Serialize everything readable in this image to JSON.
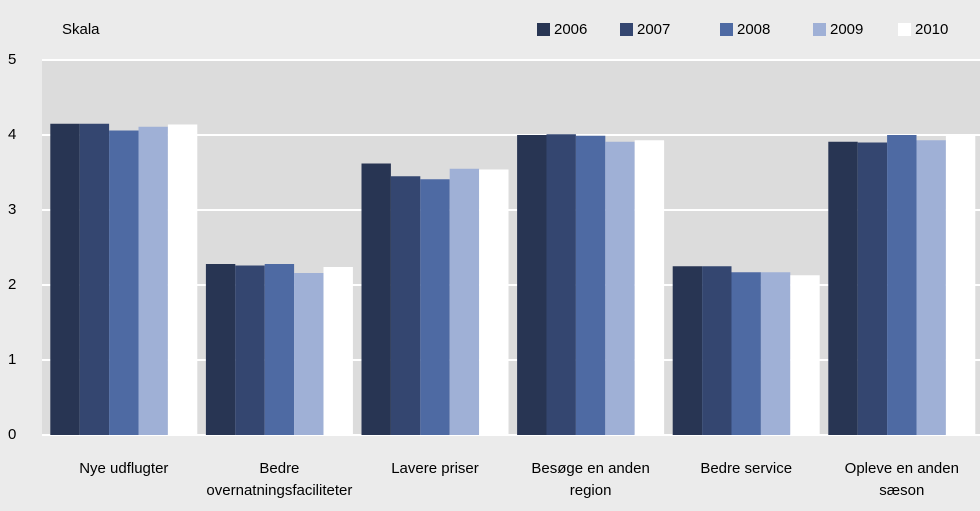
{
  "chart_data": {
    "type": "bar",
    "ylabel": "Skala",
    "categories": [
      "Nye udflugter",
      "Bedre overnatningsfaciliteter",
      "Lavere priser",
      "Besøge en anden region",
      "Bedre service",
      "Opleve en anden sæson"
    ],
    "series": [
      {
        "name": "2006",
        "color": "#283553",
        "values": [
          4.15,
          2.28,
          3.62,
          4.0,
          2.25,
          3.91
        ]
      },
      {
        "name": "2007",
        "color": "#344670",
        "values": [
          4.15,
          2.26,
          3.45,
          4.01,
          2.25,
          3.9
        ]
      },
      {
        "name": "2008",
        "color": "#4e6aa3",
        "values": [
          4.06,
          2.28,
          3.41,
          3.99,
          2.17,
          4.0
        ]
      },
      {
        "name": "2009",
        "color": "#9fb0d6",
        "values": [
          4.11,
          2.16,
          3.55,
          3.91,
          2.17,
          3.93
        ]
      },
      {
        "name": "2010",
        "color": "#ffffff",
        "values": [
          4.14,
          2.24,
          3.54,
          3.93,
          2.13,
          3.99
        ]
      }
    ],
    "ylim": [
      0,
      5
    ],
    "yticks": [
      0,
      1,
      2,
      3,
      4,
      5
    ],
    "grid": true
  }
}
